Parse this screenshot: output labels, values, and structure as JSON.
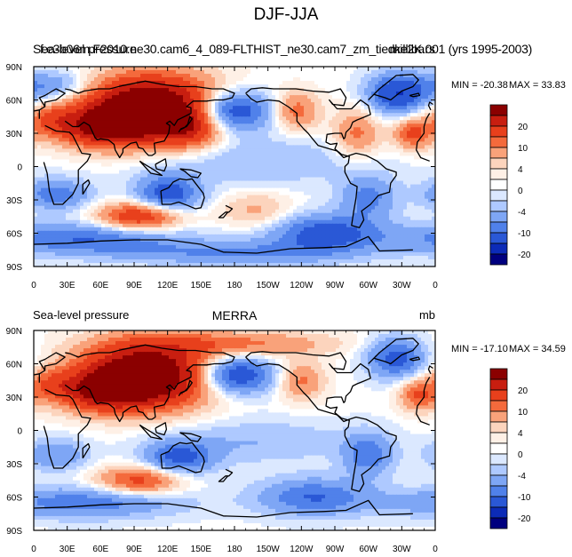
{
  "figure_title": "DJF-JJA",
  "colorbar": {
    "labels": [
      "20",
      "10",
      "4",
      "0",
      "-4",
      "-10",
      "-20"
    ],
    "colors": [
      "#8b0000",
      "#c81e10",
      "#e8401c",
      "#f46a3c",
      "#f9a27a",
      "#fcd4bd",
      "#fef0e6",
      "#ffffff",
      "#dbe8ff",
      "#aec9ff",
      "#7ea6f5",
      "#5081ea",
      "#2a58d6",
      "#0c2bb8",
      "#00007f"
    ]
  },
  "chart_data": [
    {
      "type": "heatmap",
      "title_left": "Sea-level pressure",
      "title_center": "f.e3b06m.F2010.ne30.cam6_4_089-FLTHIST_ne30.cam7_zm_tiedke2K.001 (yrs 1995-2003)",
      "title_right": "millibars",
      "min_label": "MIN = -20.38",
      "max_label": "MAX =  33.83",
      "min": -20.38,
      "max": 33.83,
      "xticks": [
        "0",
        "30E",
        "60E",
        "90E",
        "120E",
        "150E",
        "180",
        "150W",
        "120W",
        "90W",
        "60W",
        "30W",
        "0"
      ],
      "yticks": [
        "90N",
        "60N",
        "30N",
        "0",
        "30S",
        "60S",
        "90S"
      ],
      "xlim": [
        0,
        360
      ],
      "ylim": [
        -90,
        90
      ],
      "features": [
        {
          "lon": 105,
          "lat": 52,
          "amp": 32,
          "slon": 42,
          "slat": 20
        },
        {
          "lon": 60,
          "lat": 35,
          "amp": 16,
          "slon": 28,
          "slat": 12
        },
        {
          "lon": 140,
          "lat": 35,
          "amp": 10,
          "slon": 18,
          "slat": 12
        },
        {
          "lon": 235,
          "lat": 50,
          "amp": 9,
          "slon": 14,
          "slat": 12
        },
        {
          "lon": 290,
          "lat": 30,
          "amp": 8,
          "slon": 15,
          "slat": 15
        },
        {
          "lon": 340,
          "lat": 30,
          "amp": 11,
          "slon": 12,
          "slat": 10
        },
        {
          "lon": 15,
          "lat": 42,
          "amp": 7,
          "slon": 14,
          "slat": 10
        },
        {
          "lon": 95,
          "lat": -45,
          "amp": 15,
          "slon": 26,
          "slat": 9
        },
        {
          "lon": 200,
          "lat": -40,
          "amp": 5,
          "slon": 22,
          "slat": 12
        },
        {
          "lon": 175,
          "lat": 50,
          "amp": -18,
          "slon": 26,
          "slat": 13
        },
        {
          "lon": 15,
          "lat": 72,
          "amp": -8,
          "slon": 28,
          "slat": 10
        },
        {
          "lon": 325,
          "lat": 65,
          "amp": -14,
          "slon": 18,
          "slat": 13
        },
        {
          "lon": 120,
          "lat": -25,
          "amp": -13,
          "slon": 20,
          "slat": 12
        },
        {
          "lon": 20,
          "lat": -25,
          "amp": -9,
          "slon": 22,
          "slat": 10
        },
        {
          "lon": 300,
          "lat": -28,
          "amp": -8,
          "slon": 18,
          "slat": 14
        },
        {
          "lon": 260,
          "lat": -60,
          "amp": -12,
          "slon": 35,
          "slat": 12
        },
        {
          "lon": 45,
          "lat": -65,
          "amp": -10,
          "slon": 60,
          "slat": 10
        },
        {
          "lon": 180,
          "lat": -78,
          "amp": -7,
          "slon": 70,
          "slat": 8
        },
        {
          "lon": 200,
          "lat": 5,
          "amp": -4,
          "slon": 70,
          "slat": 16
        }
      ]
    },
    {
      "type": "heatmap",
      "title_left": "Sea-level pressure",
      "title_center": "MERRA",
      "title_right": "mb",
      "min_label": "MIN = -17.10",
      "max_label": "MAX =  34.59",
      "min": -17.1,
      "max": 34.59,
      "xticks": [
        "0",
        "30E",
        "60E",
        "90E",
        "120E",
        "150E",
        "180",
        "150W",
        "120W",
        "90W",
        "60W",
        "30W",
        "0"
      ],
      "yticks": [
        "90N",
        "60N",
        "30N",
        "0",
        "30S",
        "60S",
        "90S"
      ],
      "xlim": [
        0,
        360
      ],
      "ylim": [
        -90,
        90
      ],
      "features": [
        {
          "lon": 100,
          "lat": 50,
          "amp": 30,
          "slon": 40,
          "slat": 20
        },
        {
          "lon": 60,
          "lat": 35,
          "amp": 15,
          "slon": 28,
          "slat": 12
        },
        {
          "lon": 180,
          "lat": 78,
          "amp": 8,
          "slon": 60,
          "slat": 8
        },
        {
          "lon": 240,
          "lat": 45,
          "amp": 8,
          "slon": 14,
          "slat": 12
        },
        {
          "lon": 345,
          "lat": 32,
          "amp": 10,
          "slon": 12,
          "slat": 10
        },
        {
          "lon": 15,
          "lat": 42,
          "amp": 6,
          "slon": 14,
          "slat": 10
        },
        {
          "lon": 95,
          "lat": -45,
          "amp": 12,
          "slon": 26,
          "slat": 9
        },
        {
          "lon": 180,
          "lat": 50,
          "amp": -16,
          "slon": 24,
          "slat": 12
        },
        {
          "lon": 325,
          "lat": 65,
          "amp": -12,
          "slon": 18,
          "slat": 13
        },
        {
          "lon": 130,
          "lat": -25,
          "amp": -11,
          "slon": 22,
          "slat": 11
        },
        {
          "lon": 20,
          "lat": -22,
          "amp": -7,
          "slon": 20,
          "slat": 10
        },
        {
          "lon": 300,
          "lat": -22,
          "amp": -9,
          "slon": 16,
          "slat": 14
        },
        {
          "lon": 250,
          "lat": -60,
          "amp": -10,
          "slon": 35,
          "slat": 12
        },
        {
          "lon": 45,
          "lat": -65,
          "amp": -9,
          "slon": 60,
          "slat": 10
        },
        {
          "lon": 200,
          "lat": -10,
          "amp": -4,
          "slon": 60,
          "slat": 14
        }
      ]
    }
  ]
}
